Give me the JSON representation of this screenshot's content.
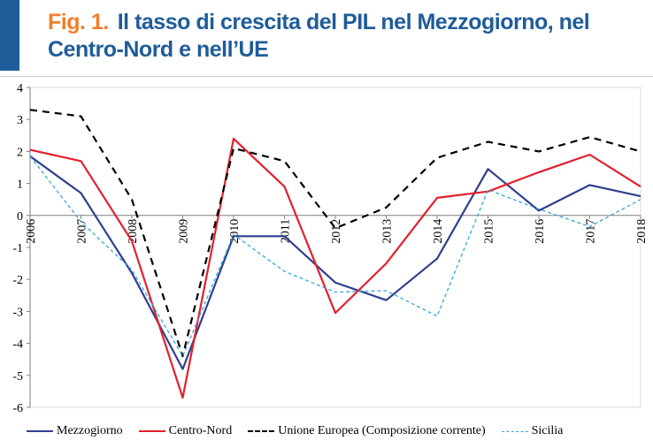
{
  "figure": {
    "fig_label": "Fig. 1.",
    "title": "Il tasso di crescita del PIL nel Mezzogiorno, nel Centro-Nord e nell’UE"
  },
  "chart_data": {
    "type": "line",
    "x": [
      "2006",
      "2007",
      "2008",
      "2009",
      "2010",
      "2011",
      "2012",
      "2013",
      "2014",
      "2015",
      "2016",
      "2017",
      "2018"
    ],
    "ylim": [
      -6,
      4
    ],
    "yticks": [
      "4",
      "3",
      "2",
      "1",
      "0",
      "-1",
      "-2",
      "-3",
      "-4",
      "-5",
      "-6"
    ],
    "grid": false,
    "legend_position": "bottom",
    "series": [
      {
        "name": "Mezzogiorno",
        "color": "#2f3f8f",
        "dash": "solid",
        "width": 2.2,
        "values": [
          1.85,
          0.7,
          -1.8,
          -4.8,
          -0.65,
          -0.65,
          -2.1,
          -2.65,
          -1.35,
          1.45,
          0.15,
          0.95,
          0.6
        ]
      },
      {
        "name": "Centro-Nord",
        "color": "#e3202d",
        "dash": "solid",
        "width": 2.2,
        "values": [
          2.05,
          1.7,
          -0.8,
          -5.7,
          2.4,
          0.9,
          -3.05,
          -1.5,
          0.55,
          0.75,
          1.35,
          1.9,
          0.9
        ]
      },
      {
        "name": "Unione Europea (Composizione corrente)",
        "color": "#000000",
        "dash": "8,6",
        "width": 2.2,
        "values": [
          3.3,
          3.1,
          0.5,
          -4.4,
          2.1,
          1.7,
          -0.4,
          0.25,
          1.8,
          2.3,
          2.0,
          2.45,
          2.0
        ]
      },
      {
        "name": "Sicilia",
        "color": "#35a8d8",
        "dash": "4,3",
        "width": 1.3,
        "values": [
          1.85,
          -0.2,
          -1.7,
          -4.4,
          -0.6,
          -1.75,
          -2.4,
          -2.35,
          -3.15,
          0.8,
          0.2,
          -0.35,
          0.5
        ]
      }
    ]
  }
}
